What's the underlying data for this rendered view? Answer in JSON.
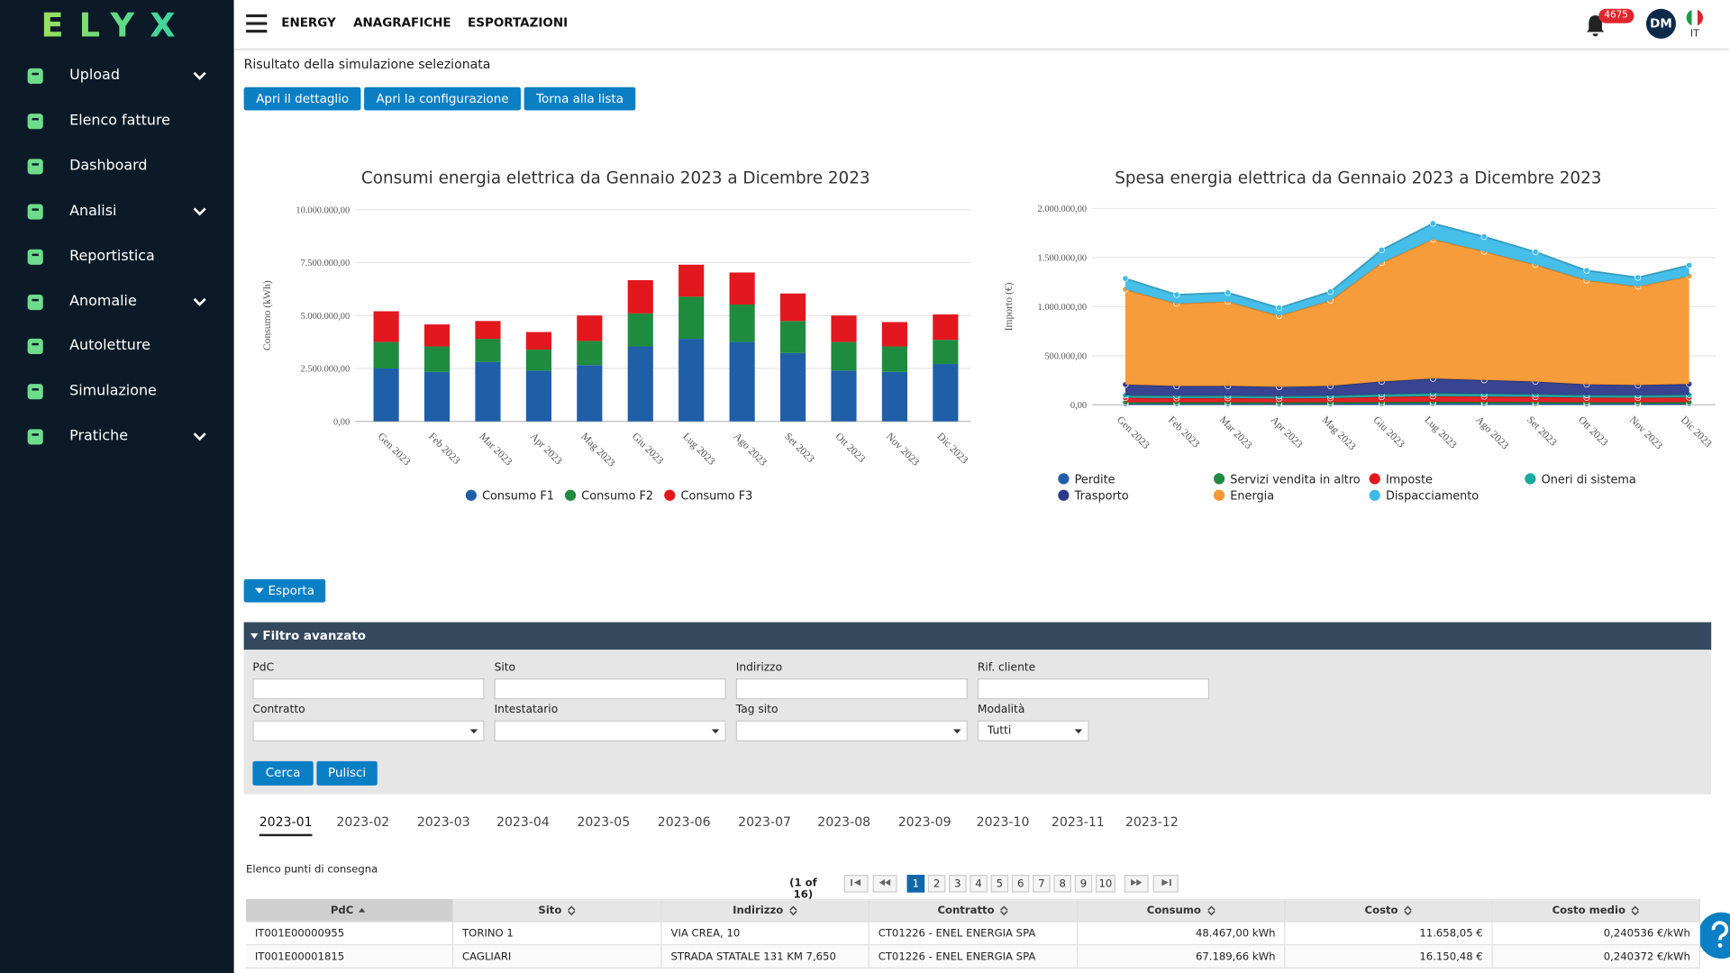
{
  "sidebar": {
    "logo": "ELYX",
    "menu": [
      {
        "label": "Upload",
        "expandable": true
      },
      {
        "label": "Elenco fatture",
        "expandable": false
      },
      {
        "label": "Dashboard",
        "expandable": false
      },
      {
        "label": "Analisi",
        "expandable": true
      },
      {
        "label": "Reportistica",
        "expandable": false
      },
      {
        "label": "Anomalie",
        "expandable": true
      },
      {
        "label": "Autoletture",
        "expandable": false
      },
      {
        "label": "Simulazione",
        "expandable": false
      },
      {
        "label": "Pratiche",
        "expandable": true
      }
    ]
  },
  "header": {
    "nav": [
      "ENERGY",
      "ANAGRAFICHE",
      "ESPORTAZIONI"
    ],
    "notifications": "4675",
    "user": "DM",
    "language": "IT"
  },
  "page": {
    "title": "Risultato della simulazione selezionata",
    "buttons": [
      "Apri il dettaglio",
      "Apri la configurazione",
      "Torna alla lista"
    ],
    "export": "Esporta"
  },
  "chart_data": [
    {
      "type": "bar",
      "stacked": true,
      "title": "Consumi energia elettrica da Gennaio 2023 a Dicembre 2023",
      "y_label": "Consumo (kWh)",
      "categories": [
        "Gen 2023",
        "Feb 2023",
        "Mar 2023",
        "Apr 2023",
        "Mag 2023",
        "Giu 2023",
        "Lug 2023",
        "Ago 2023",
        "Set 2023",
        "Ott 2023",
        "Nov 2023",
        "Dic 2023"
      ],
      "series": [
        {
          "name": "Consumo F1",
          "color": "#1f5fa8",
          "values": [
            2500000,
            2340000,
            2810000,
            2400000,
            2660000,
            3540000,
            3900000,
            3750000,
            3230000,
            2400000,
            2340000,
            2710000
          ]
        },
        {
          "name": "Consumo F2",
          "color": "#1e8b3e",
          "values": [
            1250000,
            1200000,
            1090000,
            990000,
            1140000,
            1560000,
            1990000,
            1770000,
            1510000,
            1350000,
            1200000,
            1140000
          ]
        },
        {
          "name": "Consumo F3",
          "color": "#e3171e",
          "values": [
            1450000,
            1040000,
            840000,
            830000,
            1200000,
            1570000,
            1510000,
            1510000,
            1300000,
            1250000,
            1150000,
            1200000
          ]
        }
      ],
      "ylim": [
        0,
        10000000
      ],
      "yticks": [
        {
          "value": 0,
          "label": "0,00"
        },
        {
          "value": 2500000,
          "label": "2.500.000,00"
        },
        {
          "value": 5000000,
          "label": "5.000.000,00"
        },
        {
          "value": 7500000,
          "label": "7.500.000,00"
        },
        {
          "value": 10000000,
          "label": "10.000.000,00"
        }
      ],
      "grid": true,
      "legend": "bottom"
    },
    {
      "type": "area",
      "stacked": true,
      "markers": true,
      "title": "Spesa energia elettrica da Gennaio 2023 a Dicembre 2023",
      "y_label": "Importo (€)",
      "categories": [
        "Gen 2023",
        "Feb 2023",
        "Mar 2023",
        "Apr 2023",
        "Mag 2023",
        "Giu 2023",
        "Lug 2023",
        "Ago 2023",
        "Set 2023",
        "Ott 2023",
        "Nov 2023",
        "Dic 2023"
      ],
      "series": [
        {
          "name": "Perdite",
          "color": "#1f5fa8",
          "values": [
            12000,
            11000,
            11000,
            10000,
            11000,
            14000,
            16000,
            15000,
            14000,
            12000,
            12000,
            13000
          ]
        },
        {
          "name": "Servizi vendita in altro",
          "color": "#1e8b3e",
          "values": [
            15000,
            15000,
            15000,
            15000,
            15000,
            15000,
            15000,
            15000,
            15000,
            15000,
            15000,
            15000
          ]
        },
        {
          "name": "Imposte",
          "color": "#e3171e",
          "values": [
            45000,
            42000,
            43000,
            40000,
            43000,
            52000,
            58000,
            55000,
            52000,
            47000,
            45000,
            48000
          ]
        },
        {
          "name": "Oneri di sistema",
          "color": "#1aa9a0",
          "values": [
            25000,
            24000,
            24000,
            23000,
            24000,
            27000,
            29000,
            28000,
            27000,
            25000,
            25000,
            26000
          ]
        },
        {
          "name": "Trasporto",
          "color": "#2d3a8c",
          "values": [
            110000,
            100000,
            100000,
            95000,
            100000,
            130000,
            150000,
            140000,
            130000,
            110000,
            105000,
            110000
          ]
        },
        {
          "name": "Energia",
          "color": "#f7972f",
          "values": [
            970000,
            840000,
            860000,
            725000,
            870000,
            1210000,
            1420000,
            1310000,
            1190000,
            1060000,
            1005000,
            1100000
          ]
        },
        {
          "name": "Dispacciamento",
          "color": "#3bbbe8",
          "values": [
            110000,
            90000,
            90000,
            80000,
            90000,
            130000,
            160000,
            150000,
            130000,
            100000,
            90000,
            110000
          ]
        }
      ],
      "ylim": [
        0,
        2000000
      ],
      "yticks": [
        {
          "value": 0,
          "label": "0,00"
        },
        {
          "value": 500000,
          "label": "500.000,00"
        },
        {
          "value": 1000000,
          "label": "1.000.000,00"
        },
        {
          "value": 1500000,
          "label": "1.500.000,00"
        },
        {
          "value": 2000000,
          "label": "2.000.000,00"
        }
      ],
      "grid": true,
      "legend": "bottom"
    }
  ],
  "filter": {
    "title": "Filtro avanzato",
    "fields": [
      {
        "label": "PdC",
        "kind": "text"
      },
      {
        "label": "Sito",
        "kind": "text"
      },
      {
        "label": "Indirizzo",
        "kind": "text"
      },
      {
        "label": "Rif. cliente",
        "kind": "text"
      },
      {
        "label": "Contratto",
        "kind": "select"
      },
      {
        "label": "Intestatario",
        "kind": "select"
      },
      {
        "label": "Tag sito",
        "kind": "select"
      },
      {
        "label": "Modalità",
        "kind": "select",
        "value": "Tutti"
      }
    ],
    "buttons": [
      "Cerca",
      "Pulisci"
    ]
  },
  "tabs": {
    "items": [
      "2023-01",
      "2023-02",
      "2023-03",
      "2023-04",
      "2023-05",
      "2023-06",
      "2023-07",
      "2023-08",
      "2023-09",
      "2023-10",
      "2023-11",
      "2023-12"
    ],
    "active": 0
  },
  "table": {
    "caption": "Elenco punti di consegna",
    "pager": {
      "summary": "(1 of 16)",
      "pages": [
        1,
        2,
        3,
        4,
        5,
        6,
        7,
        8,
        9,
        10
      ],
      "current": 1
    },
    "columns": [
      {
        "label": "PdC",
        "align": "left",
        "sort": "asc"
      },
      {
        "label": "Sito",
        "align": "left",
        "sort": "none"
      },
      {
        "label": "Indirizzo",
        "align": "left",
        "sort": "none"
      },
      {
        "label": "Contratto",
        "align": "left",
        "sort": "none"
      },
      {
        "label": "Consumo",
        "align": "right",
        "sort": "none"
      },
      {
        "label": "Costo",
        "align": "right",
        "sort": "none"
      },
      {
        "label": "Costo medio",
        "align": "right",
        "sort": "none"
      }
    ],
    "rows": [
      [
        "IT001E00000955",
        "TORINO 1",
        "VIA CREA, 10",
        "CT01226 - ENEL ENERGIA SPA",
        "48.467,00 kWh",
        "11.658,05 €",
        "0,240536 €/kWh"
      ],
      [
        "IT001E00001815",
        "CAGLIARI",
        "STRADA STATALE 131 KM 7,650",
        "CT01226 - ENEL ENERGIA SPA",
        "67.189,66 kWh",
        "16.150,48 €",
        "0,240372 €/kWh"
      ]
    ]
  }
}
